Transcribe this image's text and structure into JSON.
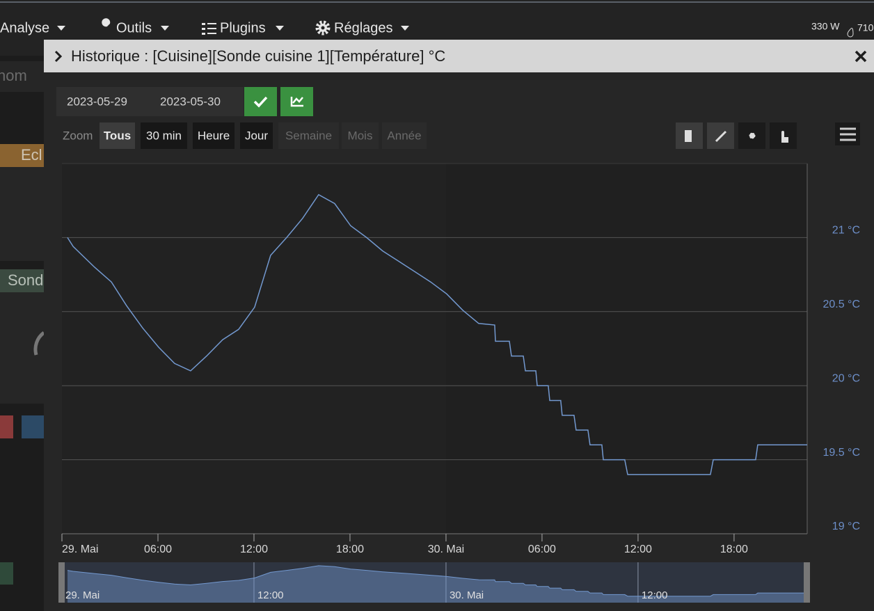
{
  "nav": {
    "items": [
      "Analyse",
      "Outils",
      "Plugins",
      "Réglages"
    ],
    "power": "330 W",
    "water": "710"
  },
  "background": {
    "search_placeholder": "nom",
    "tiles": [
      "Ecl",
      "Sond"
    ]
  },
  "modal": {
    "title": "Historique : [Cuisine][Sonde cuisine 1][Température] °C",
    "start_date": "2023-05-29",
    "end_date": "2023-05-30",
    "zoom_label": "Zoom",
    "zoom_buttons": [
      "Tous",
      "30 min",
      "Heure",
      "Jour",
      "Semaine",
      "Mois",
      "Année"
    ]
  },
  "chart_data": {
    "type": "line",
    "x": [
      0.35,
      0.7,
      2.04,
      3.09,
      4.04,
      5.04,
      6.04,
      7.04,
      8.04,
      9.04,
      10.04,
      11.04,
      12.04,
      13.04,
      14.04,
      15.04,
      16.04,
      17.04,
      18.04,
      19.04,
      20.04,
      21.04,
      22.04,
      23.04,
      24.04,
      25.04,
      26.04,
      27.04,
      27.09,
      27.96,
      28.09,
      28.83,
      28.96,
      29.61,
      29.7,
      30.39,
      30.48,
      31.17,
      31.26,
      32.0,
      32.13,
      32.87,
      33.0,
      33.74,
      33.83,
      35.17,
      35.35,
      40.52,
      40.7,
      43.35,
      43.48,
      46.57
    ],
    "values": [
      21.0,
      20.94,
      20.8,
      20.7,
      20.54,
      20.39,
      20.26,
      20.15,
      20.1,
      20.2,
      20.31,
      20.38,
      20.53,
      20.88,
      21.0,
      21.13,
      21.29,
      21.23,
      21.08,
      21.0,
      20.91,
      20.84,
      20.77,
      20.7,
      20.62,
      20.51,
      20.42,
      20.41,
      20.3,
      20.3,
      20.2,
      20.2,
      20.1,
      20.1,
      20.0,
      20.0,
      19.9,
      19.9,
      19.8,
      19.8,
      19.7,
      19.7,
      19.6,
      19.6,
      19.5,
      19.5,
      19.4,
      19.4,
      19.5,
      19.5,
      19.6,
      19.6
    ],
    "color": "#7399d0",
    "xlim": [
      0,
      46.57
    ],
    "ylim": [
      19,
      21.5
    ],
    "xticks": [
      {
        "value": 0,
        "label": "29. Mai"
      },
      {
        "value": 6,
        "label": "06:00"
      },
      {
        "value": 12,
        "label": "12:00"
      },
      {
        "value": 18,
        "label": "18:00"
      },
      {
        "value": 24,
        "label": "30. Mai"
      },
      {
        "value": 30,
        "label": "06:00"
      },
      {
        "value": 36,
        "label": "12:00"
      },
      {
        "value": 42,
        "label": "18:00"
      }
    ],
    "yticks": [
      {
        "value": 19,
        "label": "19 °C"
      },
      {
        "value": 19.5,
        "label": "19.5 °C"
      },
      {
        "value": 20,
        "label": "20 °C"
      },
      {
        "value": 20.5,
        "label": "20.5 °C"
      },
      {
        "value": 21,
        "label": "21 °C"
      }
    ],
    "grid": true,
    "navigator_xticks": [
      {
        "value": 0,
        "label": "29. Mai"
      },
      {
        "value": 12,
        "label": "12:00"
      },
      {
        "value": 24,
        "label": "30. Mai"
      },
      {
        "value": 36,
        "label": "12:00"
      }
    ]
  }
}
